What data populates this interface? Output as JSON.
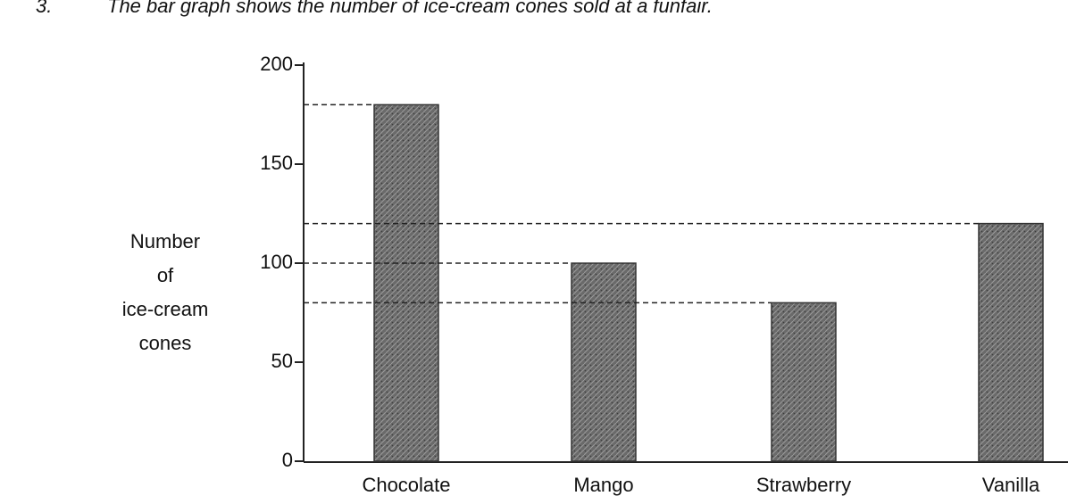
{
  "chart_data": {
    "type": "bar",
    "number": "3.",
    "title": "The bar graph shows the number of ice-cream cones sold at a funfair.",
    "ylabel": [
      "Number",
      "of",
      "ice-cream",
      "cones"
    ],
    "categories": [
      "Chocolate",
      "Mango",
      "Strawberry",
      "Vanilla"
    ],
    "values": [
      180,
      100,
      80,
      120
    ],
    "color": "#6a6a6a",
    "ylim": [
      0,
      200
    ],
    "yticks": [
      0,
      50,
      100,
      150,
      200
    ],
    "reference_lines": true
  }
}
